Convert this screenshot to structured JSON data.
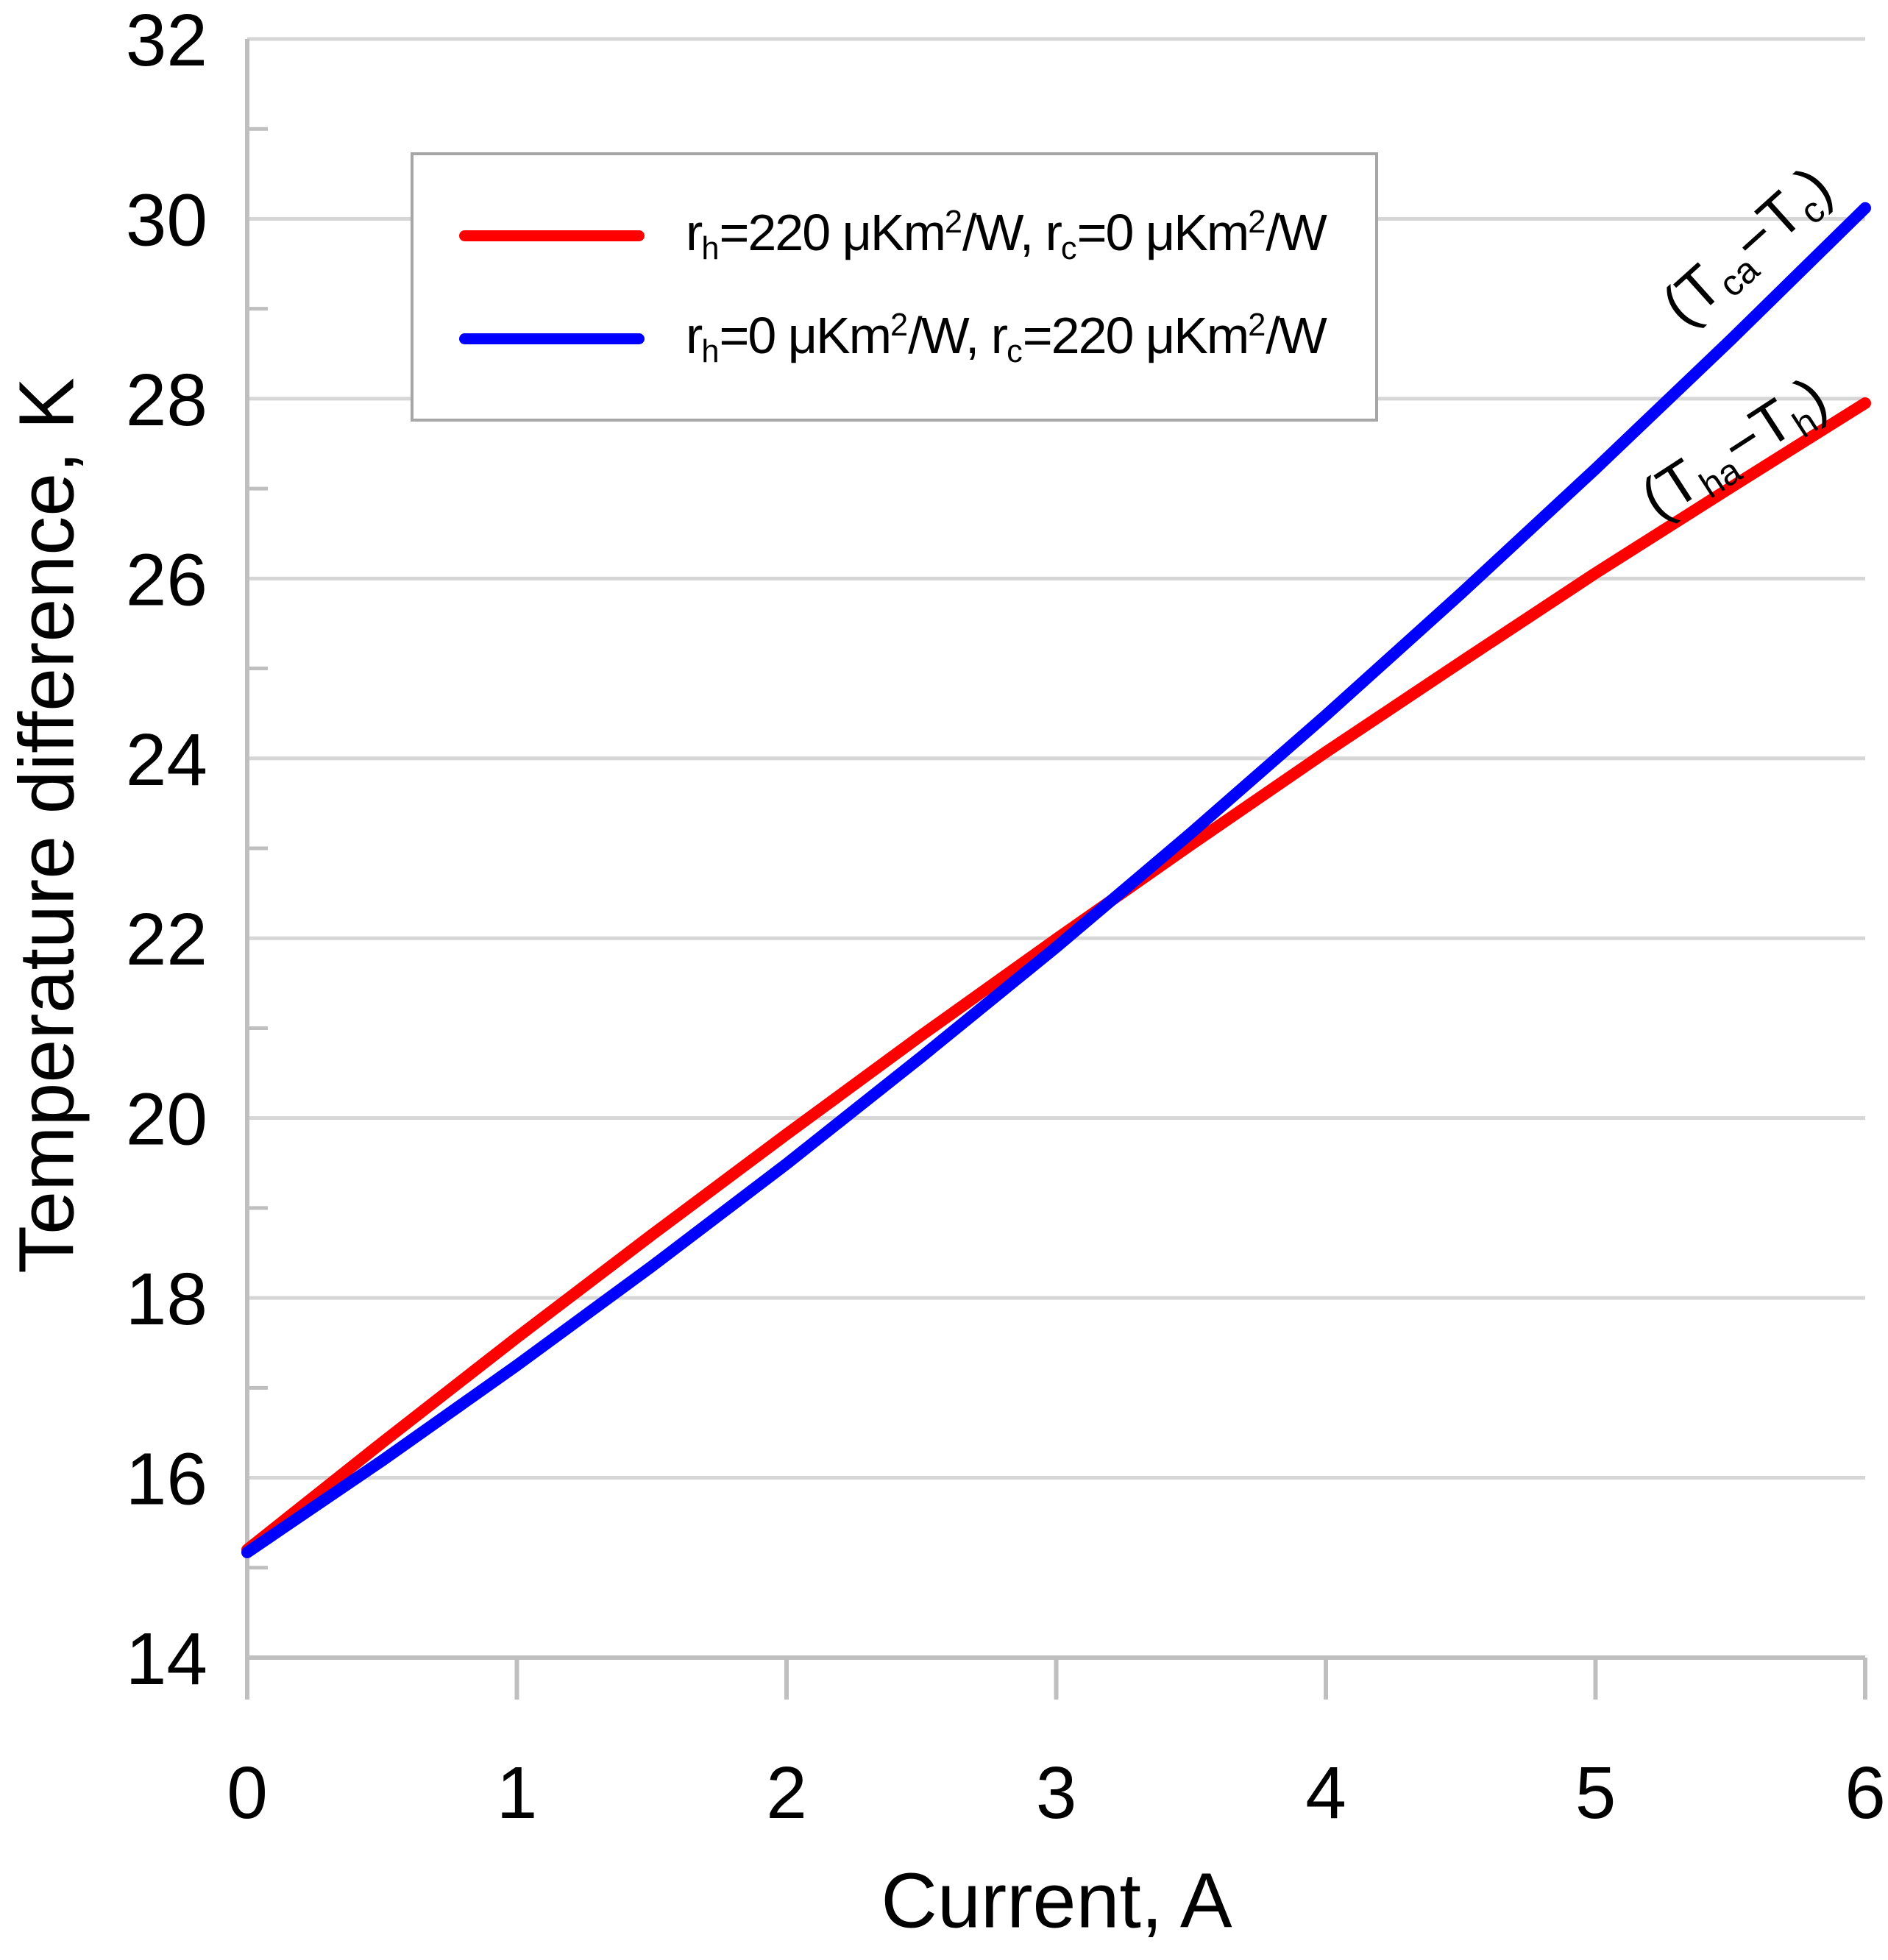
{
  "chart_data": {
    "type": "line",
    "title": "",
    "x_axis": {
      "label": "Current, A",
      "min": 0,
      "max": 6,
      "ticks": [
        0,
        1,
        2,
        3,
        4,
        5,
        6
      ]
    },
    "y_axis": {
      "label": "Temperature difference, K",
      "min": 14,
      "max": 32,
      "major_ticks": [
        14,
        16,
        18,
        20,
        22,
        24,
        26,
        28,
        30,
        32
      ],
      "minor_ticks": [
        15,
        17,
        19,
        21,
        23,
        25,
        27,
        29,
        31
      ],
      "gridlines": "horizontal-at-major-ticks"
    },
    "x": [
      0,
      0.5,
      1,
      1.5,
      2,
      2.5,
      3,
      3.5,
      4,
      4.5,
      5,
      5.5,
      6
    ],
    "series": [
      {
        "id": "rh220-rc0",
        "name": "rh=220 uKm2/W, rc=0 uKm2/W",
        "color": "#ff0000",
        "legend_parts": [
          {
            "t": "r"
          },
          {
            "sub": "h"
          },
          {
            "t": "=220 μKm"
          },
          {
            "sup": "2"
          },
          {
            "t": "/W, r"
          },
          {
            "sub": "c"
          },
          {
            "t": "=0 μKm"
          },
          {
            "sup": "2"
          },
          {
            "t": "/W"
          }
        ],
        "values": [
          15.2,
          16.39,
          17.56,
          18.7,
          19.82,
          20.92,
          21.99,
          23.04,
          24.07,
          25.07,
          26.06,
          27.01,
          27.95
        ]
      },
      {
        "id": "rh0-rc220",
        "name": "rh=0 uKm2/W, rc=220 uKm2/W",
        "color": "#0000ff",
        "legend_parts": [
          {
            "t": "r"
          },
          {
            "sub": "h"
          },
          {
            "t": "=0 μKm"
          },
          {
            "sup": "2"
          },
          {
            "t": "/W, r"
          },
          {
            "sub": "c"
          },
          {
            "t": "=220 μKm"
          },
          {
            "sup": "2"
          },
          {
            "t": "/W"
          }
        ],
        "values": [
          15.17,
          16.19,
          17.25,
          18.35,
          19.49,
          20.68,
          21.9,
          23.17,
          24.48,
          25.83,
          27.22,
          28.65,
          30.12
        ]
      }
    ],
    "annotations": [
      {
        "id": "cold",
        "parts": [
          {
            "t": "(T"
          },
          {
            "sub": "ca"
          },
          {
            "t": "−T"
          },
          {
            "sub": "c"
          },
          {
            "t": ")"
          }
        ],
        "x": 5.57,
        "y": 29.67,
        "rotation_deg": -42
      },
      {
        "id": "hot",
        "parts": [
          {
            "t": "(T"
          },
          {
            "sub": "ha"
          },
          {
            "t": "−T"
          },
          {
            "sub": "h"
          },
          {
            "t": ")"
          }
        ],
        "x": 5.52,
        "y": 27.42,
        "rotation_deg": -33
      }
    ],
    "legend_position": "top-left-inside",
    "colors": {
      "gridline": "#d6d6d6",
      "axis": "#bfbfbf",
      "legend_border": "#a6a6a6",
      "text": "#000000"
    }
  }
}
